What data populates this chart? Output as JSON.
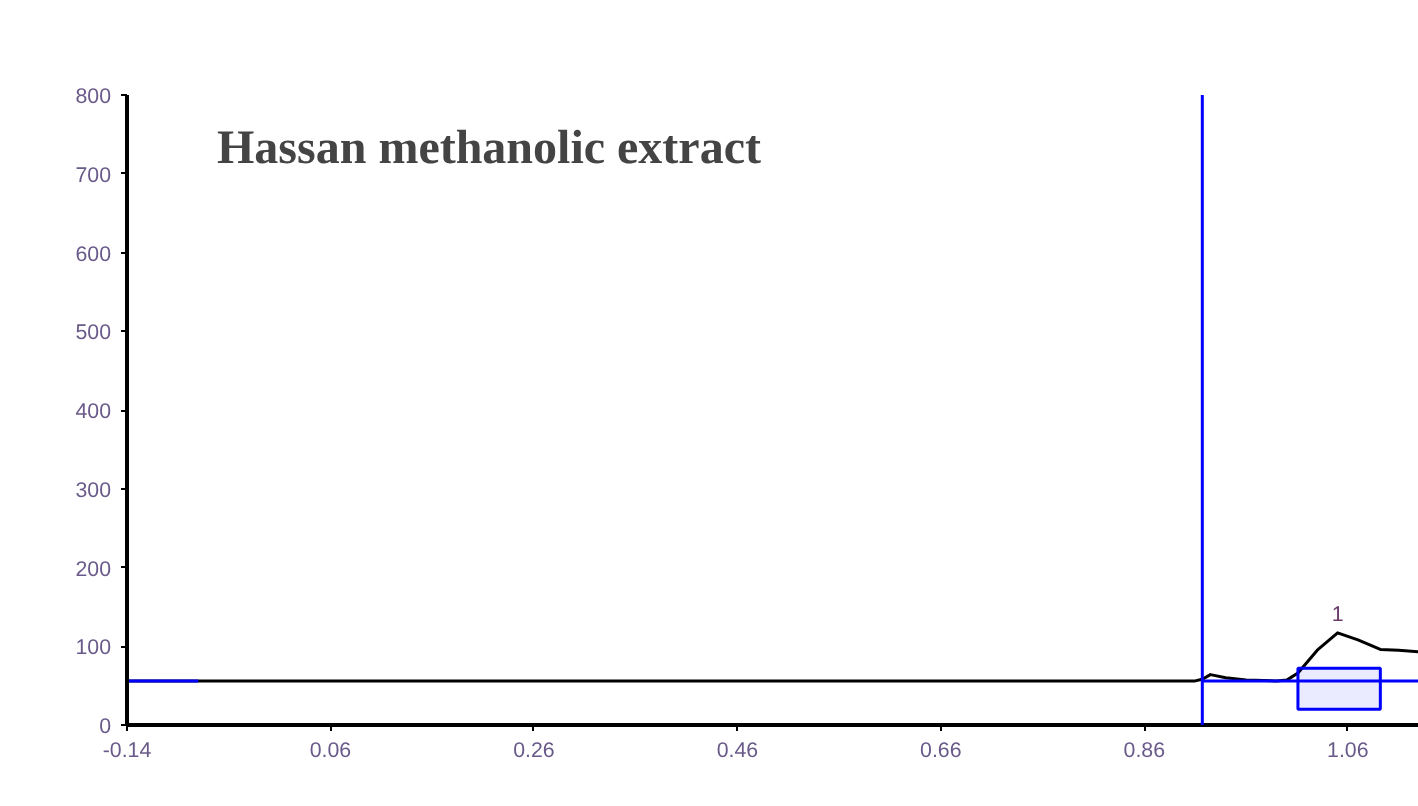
{
  "chart_data": {
    "type": "line",
    "title": "Hassan methanolic extract",
    "xlim": [
      -0.14,
      1.13
    ],
    "ylim": [
      0,
      800
    ],
    "xticks": [
      -0.14,
      0.06,
      0.26,
      0.46,
      0.66,
      0.86,
      1.06
    ],
    "yticks": [
      0,
      100,
      200,
      300,
      400,
      500,
      600,
      700,
      800
    ],
    "grid": false,
    "marker": "none",
    "line_style": "solid",
    "series": [
      {
        "color": "#000000",
        "x": [
          -0.14,
          0.91,
          0.917,
          0.925,
          0.94,
          0.96,
          0.99,
          1.0,
          1.011,
          1.03,
          1.05,
          1.07,
          1.092,
          1.11,
          1.13
        ],
        "values": [
          56,
          56,
          58,
          64,
          60,
          57,
          56,
          57,
          66,
          95,
          117,
          108,
          96,
          95,
          93
        ]
      },
      {
        "color": "#0000ff",
        "x": [
          -0.14,
          -0.07,
          -0.069,
          0.917,
          1.13
        ],
        "values": [
          56,
          56,
          null,
          56,
          56
        ]
      }
    ],
    "ref_lines": [
      {
        "axis": "x",
        "value": 0.917,
        "color": "#0000ff"
      }
    ],
    "bands": [
      {
        "axis": "x",
        "from": 1.011,
        "to": 1.092,
        "color": "#0000ff"
      }
    ],
    "annotations": [
      {
        "text": "1",
        "x": 1.05,
        "y": 117
      }
    ]
  }
}
